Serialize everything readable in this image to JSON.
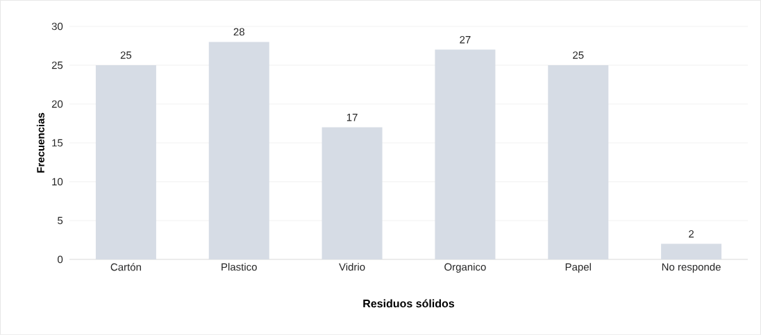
{
  "chart_data": {
    "type": "bar",
    "xlabel": "Residuos sólidos",
    "ylabel": "Frecuencias",
    "categories": [
      "Cartón",
      "Plastico",
      "Vidrio",
      "Organico",
      "Papel",
      "No responde"
    ],
    "values": [
      25,
      28,
      17,
      27,
      25,
      2
    ],
    "color": "#d6dce5",
    "ylim": [
      0,
      30
    ],
    "yticks": [
      0,
      5,
      10,
      15,
      20,
      25,
      30
    ],
    "grid": "y",
    "data_labels": true
  }
}
